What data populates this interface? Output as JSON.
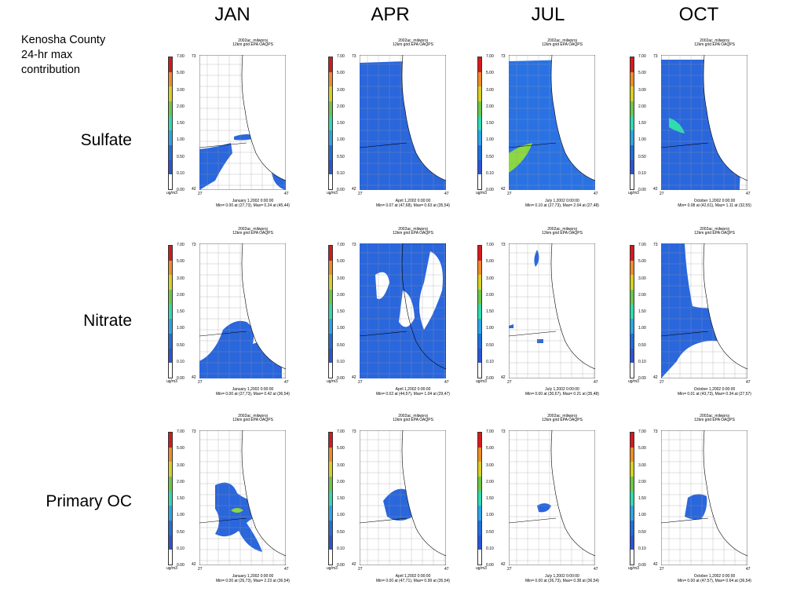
{
  "months": [
    "JAN",
    "APR",
    "JUL",
    "OCT"
  ],
  "caption": [
    "Kenosha County",
    "24-hr max",
    "contribution"
  ],
  "rows": [
    "Sulfate",
    "Nitrate",
    "Primary OC"
  ],
  "panel_common": {
    "run": "2002ac_milwproj",
    "grid": "12km grid EPA OAQPS",
    "unit": "ug/m3",
    "x_min": "27",
    "x_max": "47",
    "y_max": "73",
    "y_min": "42"
  },
  "colorbar": {
    "levels": [
      "7.00",
      "5.00",
      "3.00",
      "2.00",
      "1.50",
      "1.00",
      "0.50",
      "0.10",
      "0.00"
    ],
    "colors": [
      "#d7191c",
      "#f08c28",
      "#d8d020",
      "#6cc84a",
      "#2edcb0",
      "#2ba6e6",
      "#1f6fe0",
      "#2a55d6",
      "#ffffff"
    ]
  },
  "panels": [
    {
      "row": 0,
      "col": 0,
      "date": "January 1,2002 0:00:00",
      "minmax": "Min=   0.00 at (27,73), Max=    0.24 at (45,44)"
    },
    {
      "row": 0,
      "col": 1,
      "date": "April 1,2002 0:00:00",
      "minmax": "Min=   0.07 at (47,68), Max=    0.63 at (35,54)"
    },
    {
      "row": 0,
      "col": 2,
      "date": "July 1,2002 0:00:00",
      "minmax": "Min=   0.10 at (27,73), Max=    2.04 at (27,48)"
    },
    {
      "row": 0,
      "col": 3,
      "date": "October 1,2002 0:00:00",
      "minmax": "Min=   0.08 at (42,61), Max=    1.11 at (32,55)"
    },
    {
      "row": 1,
      "col": 0,
      "date": "January 1,2002 0:00:00",
      "minmax": "Min=   0.00 at (27,73), Max=    0.42 at (36,54)"
    },
    {
      "row": 1,
      "col": 1,
      "date": "April 1,2002 0:00:00",
      "minmax": "Min=   0.02 at (44,57), Max=    1.04 at (29,47)"
    },
    {
      "row": 1,
      "col": 2,
      "date": "July 1,2002 0:00:00",
      "minmax": "Min=   0.00 at (30,67), Max=    0.21 at (35,48)"
    },
    {
      "row": 1,
      "col": 3,
      "date": "October 1,2002 0:00:00",
      "minmax": "Min=   0.01 at (43,73), Max=    0.34 at (27,57)"
    },
    {
      "row": 2,
      "col": 0,
      "date": "January 1,2002 0:00:00",
      "minmax": "Min=   0.00 at (26,73), Max=    2.23 at (36,54)"
    },
    {
      "row": 2,
      "col": 1,
      "date": "April 1,2002 0:00:00",
      "minmax": "Min=   0.00 at (47,71), Max=    0.99 at (35,54)"
    },
    {
      "row": 2,
      "col": 2,
      "date": "July 1,2002 0:00:00",
      "minmax": "Min=   0.00 at (26,73), Max=    0.38 at (36,54)"
    },
    {
      "row": 2,
      "col": 3,
      "date": "October 1,2002 0:00:00",
      "minmax": "Min=   0.00 at (47,57), Max=    0.64 at (36,54)"
    }
  ]
}
